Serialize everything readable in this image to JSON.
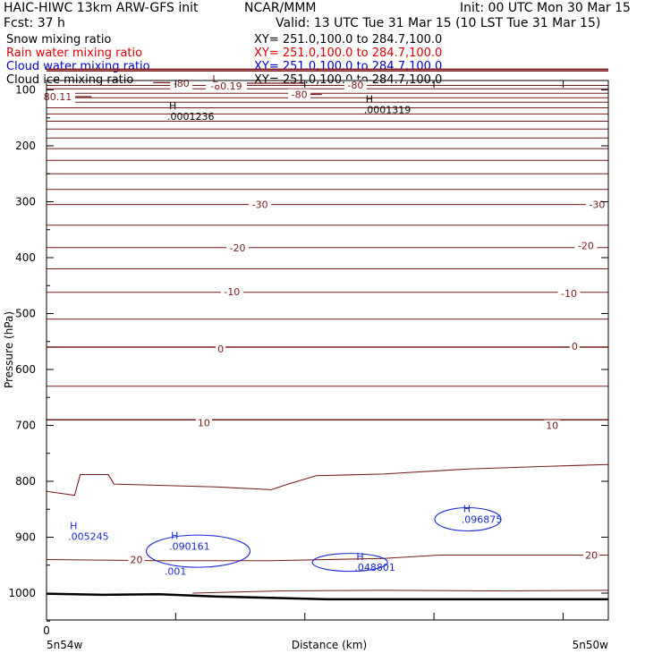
{
  "header": {
    "title_left": "HAIC-HIWC 13km ARW-GFS init",
    "org": "NCAR/MMM",
    "init": "Init: 00 UTC Mon 30 Mar 15",
    "fcst": "Fcst:    37 h",
    "valid": "Valid: 13 UTC Tue 31 Mar 15 (10 LST Tue 31 Mar 15)"
  },
  "fields": [
    {
      "label": "Snow mixing ratio",
      "xy": "XY= 251.0,100.0 to 284.7,100.0",
      "color": "#000000"
    },
    {
      "label": "Rain water mixing ratio",
      "xy": "XY= 251.0,100.0 to 284.7,100.0",
      "color": "#e00000"
    },
    {
      "label": "Cloud water mixing ratio",
      "xy": "XY= 251.0,100.0 to 284.7,100.0",
      "color": "#0000cc"
    },
    {
      "label": "Cloud ice mixing ratio",
      "xy": "XY= 251.0,100.0 to 284.7,100.0",
      "color": "#000000"
    }
  ],
  "chart_data": {
    "type": "contour",
    "xlabel": "Distance (km)",
    "ylabel": "Pressure (hPa)",
    "x_left_label": "5n54w",
    "x_right_label": "5n50w",
    "x_tick_labels": [
      "0"
    ],
    "y_ticks": [
      100,
      200,
      300,
      400,
      500,
      600,
      700,
      800,
      900,
      1000
    ],
    "ylim": [
      1050,
      62
    ],
    "temperature_labels": [
      {
        "text": "-80",
        "p": 88,
        "x": 0.24
      },
      {
        "text": "-80.19",
        "p": 93,
        "x": 0.32
      },
      {
        "text": "L",
        "p": 80,
        "x": 0.3
      },
      {
        "text": "-80",
        "p": 108,
        "x": 0.45
      },
      {
        "text": "-80",
        "p": 91,
        "x": 0.55
      },
      {
        "text": "80.11",
        "p": 112,
        "x": 0.02
      },
      {
        "text": "-30",
        "p": 305,
        "x": 0.38
      },
      {
        "text": "-30",
        "p": 305,
        "x": 0.98
      },
      {
        "text": "-20",
        "p": 382,
        "x": 0.34
      },
      {
        "text": "-20",
        "p": 378,
        "x": 0.96
      },
      {
        "text": "-10",
        "p": 461,
        "x": 0.33
      },
      {
        "text": "-10",
        "p": 464,
        "x": 0.93
      },
      {
        "text": "0",
        "p": 563,
        "x": 0.31
      },
      {
        "text": "0",
        "p": 558,
        "x": 0.94
      },
      {
        "text": "10",
        "p": 695,
        "x": 0.28
      },
      {
        "text": "10",
        "p": 700,
        "x": 0.9
      },
      {
        "text": "20",
        "p": 940,
        "x": 0.16
      },
      {
        "text": "20",
        "p": 932,
        "x": 0.97
      }
    ],
    "cloud_ice_maxima": [
      {
        "text": "H",
        "value": ".0001236",
        "p": 150,
        "x": 0.25
      },
      {
        "text": "H",
        "value": ".0001319",
        "p": 138,
        "x": 0.6
      }
    ],
    "cloud_water_maxima": [
      {
        "text": "H",
        "value": ".005245",
        "p": 895,
        "x": 0.04
      },
      {
        "text": "H",
        "value": ".090161",
        "p": 913,
        "x": 0.22
      },
      {
        "text": "H",
        "value": ".048801",
        "p": 950,
        "x": 0.55
      },
      {
        "text": "H",
        "value": ".096875",
        "p": 865,
        "x": 0.74
      }
    ],
    "cloud_water_contour_labels": [
      {
        "text": ".001",
        "p": 961,
        "x": 0.21
      }
    ],
    "surface_pressure": [
      [
        0,
        1001
      ],
      [
        0.1,
        1003
      ],
      [
        0.2,
        1002
      ],
      [
        0.3,
        1006
      ],
      [
        0.5,
        1011
      ],
      [
        1.0,
        1011
      ]
    ]
  }
}
